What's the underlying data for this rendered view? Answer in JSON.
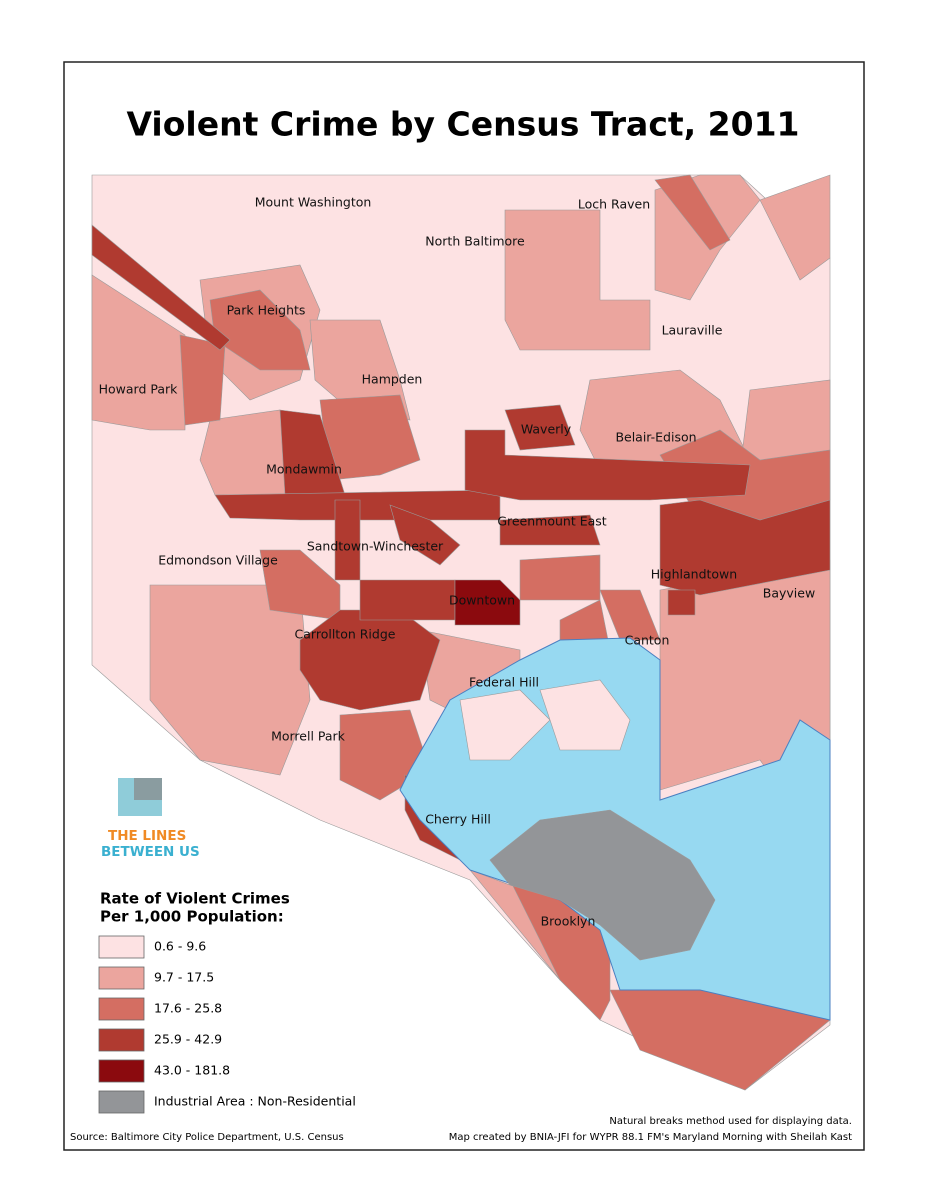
{
  "title": "Violent Crime by Census Tract, 2011",
  "map": {
    "labels": [
      "Mount Washington",
      "North Baltimore",
      "Loch Raven",
      "Park Heights",
      "Lauraville",
      "Howard Park",
      "Hampden",
      "Waverly",
      "Belair-Edison",
      "Mondawmin",
      "Greenmount East",
      "Sandtown-Winchester",
      "Edmondson Village",
      "Highlandtown",
      "Bayview",
      "Downtown",
      "Carrollton Ridge",
      "Canton",
      "Federal Hill",
      "Morrell Park",
      "Cherry Hill",
      "Brooklyn"
    ],
    "water_color": "#97d9f1",
    "boundary_color": "#9a9a9a"
  },
  "logo": {
    "line1": "THE LINES",
    "line2": "BETWEEN US"
  },
  "legend": {
    "title_lines": [
      "Rate of Violent Crimes",
      "Per 1,000 Population:"
    ],
    "items": [
      {
        "label": "0.6 - 9.6",
        "color": "#fde2e3"
      },
      {
        "label": "9.7 - 17.5",
        "color": "#eba59e"
      },
      {
        "label": "17.6 - 25.8",
        "color": "#d46e62"
      },
      {
        "label": "25.9 - 42.9",
        "color": "#b03a30"
      },
      {
        "label": "43.0 - 181.8",
        "color": "#8b0a0e"
      },
      {
        "label": "Industrial Area : Non-Residential",
        "color": "#939598"
      }
    ]
  },
  "notes": [
    "Natural breaks method used for displaying data.",
    "Map created by BNIA-JFI for WYPR 88.1 FM's Maryland Morning with Sheilah Kast"
  ],
  "source": "Source: Baltimore City Police Department, U.S. Census"
}
